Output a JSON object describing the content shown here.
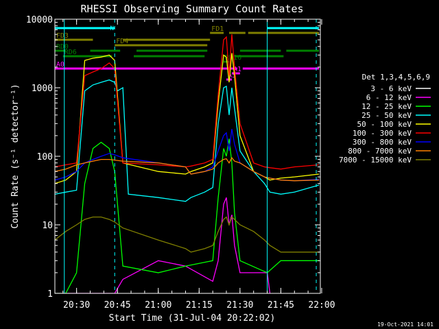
{
  "chart_data": {
    "type": "line",
    "title": "RHESSI Observing Summary Count Rates",
    "xlabel": "Start Time (31-Jul-04 20:22:02)",
    "ylabel": "Count Rate (s⁻¹ detector⁻¹)",
    "yscale": "log",
    "ylim": [
      1,
      10000
    ],
    "xlim": [
      "20:22:02",
      "21:59:30"
    ],
    "x_ticks": [
      "20:30",
      "20:45",
      "21:00",
      "21:15",
      "21:30",
      "21:45",
      "22:00"
    ],
    "y_ticks": [
      "1",
      "10",
      "100",
      "1000",
      "10000"
    ],
    "footer": "19-Oct-2021 14:01",
    "legend_title": "Det 1,3,4,5,6,9",
    "legend_position": "right",
    "colors": {
      "background": "#000000",
      "axis": "#ffffff",
      "night_lines": "#00ffff",
      "attenuator": "#ff00ff",
      "flags": "#808000",
      "decimation": "#008000"
    },
    "series": [
      {
        "name": "3 - 6 keV",
        "color": "#000000",
        "x": [
          "20:22",
          "20:26",
          "20:30",
          "20:33",
          "20:36",
          "20:39",
          "20:42",
          "20:44",
          "20:47",
          "21:10",
          "21:20",
          "21:22",
          "21:24",
          "21:25",
          "21:26",
          "21:27",
          "21:28",
          "21:30",
          "21:38",
          "21:41"
        ],
        "y": [
          1,
          1,
          1,
          20,
          32,
          35,
          28,
          15,
          1,
          1,
          1,
          3,
          22,
          35,
          15,
          30,
          8,
          2,
          1,
          1
        ]
      },
      {
        "name": "6 - 12 keV",
        "color": "#ff00ff",
        "x": [
          "20:22",
          "20:26",
          "20:30",
          "20:33",
          "20:36",
          "20:39",
          "20:42",
          "20:44",
          "20:47",
          "21:00",
          "21:10",
          "21:20",
          "21:22",
          "21:24",
          "21:25",
          "21:26",
          "21:27",
          "21:28",
          "21:30",
          "21:40",
          "21:41"
        ],
        "y": [
          1,
          1,
          1,
          1,
          1,
          1,
          1,
          1,
          1.6,
          3,
          2.5,
          1.5,
          3,
          20,
          25,
          10,
          14,
          5,
          2,
          2,
          1
        ]
      },
      {
        "name": "12 - 25 keV",
        "color": "#00ff00",
        "x": [
          "20:22",
          "20:26",
          "20:30",
          "20:33",
          "20:36",
          "20:39",
          "20:42",
          "20:44",
          "20:47",
          "21:00",
          "21:10",
          "21:20",
          "21:22",
          "21:24",
          "21:25",
          "21:26",
          "21:27",
          "21:28",
          "21:30",
          "21:40",
          "21:45",
          "21:59"
        ],
        "y": [
          1,
          1,
          2,
          40,
          130,
          160,
          130,
          60,
          2.5,
          2,
          2.5,
          3,
          25,
          130,
          100,
          180,
          80,
          15,
          3,
          2,
          3,
          3
        ]
      },
      {
        "name": "25 - 50 keV",
        "color": "#00ffff",
        "x": [
          "20:22",
          "20:26",
          "20:30",
          "20:33",
          "20:36",
          "20:39",
          "20:42",
          "20:44",
          "20:45",
          "20:47",
          "20:49",
          "21:00",
          "21:10",
          "21:12",
          "21:17",
          "21:20",
          "21:22",
          "21:24",
          "21:25",
          "21:26",
          "21:27",
          "21:28",
          "21:30",
          "21:35",
          "21:39",
          "21:41",
          "21:45",
          "21:50",
          "21:59"
        ],
        "y": [
          28,
          30,
          32,
          900,
          1100,
          1200,
          1300,
          1200,
          900,
          1000,
          28,
          25,
          22,
          25,
          30,
          35,
          300,
          1000,
          1050,
          400,
          1000,
          500,
          120,
          60,
          40,
          30,
          28,
          30,
          38
        ]
      },
      {
        "name": "50 - 100 keV",
        "color": "#ffff00",
        "x": [
          "20:22",
          "20:26",
          "20:30",
          "20:33",
          "20:36",
          "20:39",
          "20:42",
          "20:44",
          "20:47",
          "21:00",
          "21:10",
          "21:12",
          "21:17",
          "21:20",
          "21:22",
          "21:24",
          "21:25",
          "21:26",
          "21:27",
          "21:28",
          "21:30",
          "21:35",
          "21:39",
          "21:41",
          "21:45",
          "21:50",
          "21:59"
        ],
        "y": [
          40,
          45,
          60,
          2500,
          2700,
          2800,
          3000,
          2500,
          80,
          60,
          55,
          60,
          70,
          80,
          600,
          3000,
          2800,
          1200,
          3200,
          1500,
          200,
          60,
          50,
          45,
          48,
          50,
          55
        ]
      },
      {
        "name": "100 - 300 keV",
        "color": "#ff0000",
        "x": [
          "20:22",
          "20:26",
          "20:30",
          "20:33",
          "20:36",
          "20:39",
          "20:42",
          "20:44",
          "20:47",
          "21:00",
          "21:10",
          "21:12",
          "21:17",
          "21:20",
          "21:22",
          "21:24",
          "21:25",
          "21:26",
          "21:27",
          "21:28",
          "21:30",
          "21:35",
          "21:39",
          "21:41",
          "21:45",
          "21:50",
          "21:59"
        ],
        "y": [
          70,
          75,
          80,
          1500,
          1700,
          1900,
          2300,
          1900,
          80,
          75,
          70,
          72,
          80,
          90,
          800,
          5000,
          5500,
          1500,
          6000,
          2000,
          300,
          80,
          70,
          68,
          65,
          70,
          75
        ]
      },
      {
        "name": "300 - 800 keV",
        "color": "#0000ff",
        "x": [
          "20:22",
          "20:26",
          "20:30",
          "20:33",
          "20:36",
          "20:39",
          "20:42",
          "20:44",
          "20:47",
          "21:00",
          "21:10",
          "21:12",
          "21:17",
          "21:20",
          "21:22",
          "21:24",
          "21:25",
          "21:26",
          "21:27",
          "21:28",
          "21:30",
          "21:35",
          "21:39",
          "21:41",
          "21:45",
          "21:50",
          "21:59"
        ],
        "y": [
          45,
          50,
          60,
          80,
          90,
          100,
          110,
          105,
          95,
          80,
          70,
          55,
          60,
          70,
          120,
          200,
          220,
          120,
          250,
          150,
          80,
          60,
          50,
          48,
          45,
          44,
          46
        ]
      },
      {
        "name": "800 - 7000 keV",
        "color": "#ff8000",
        "x": [
          "20:22",
          "20:26",
          "20:30",
          "20:33",
          "20:36",
          "20:39",
          "20:42",
          "20:44",
          "20:47",
          "21:00",
          "21:10",
          "21:12",
          "21:17",
          "21:20",
          "21:22",
          "21:24",
          "21:25",
          "21:26",
          "21:27",
          "21:28",
          "21:30",
          "21:35",
          "21:39",
          "21:41",
          "21:45",
          "21:50",
          "21:59"
        ],
        "y": [
          60,
          65,
          75,
          80,
          85,
          90,
          90,
          88,
          85,
          80,
          70,
          55,
          60,
          65,
          80,
          90,
          92,
          80,
          95,
          85,
          80,
          60,
          50,
          48,
          45,
          44,
          45
        ]
      },
      {
        "name": "7000 - 15000 keV",
        "color": "#808000",
        "x": [
          "20:22",
          "20:26",
          "20:30",
          "20:33",
          "20:36",
          "20:39",
          "20:42",
          "20:44",
          "20:47",
          "21:00",
          "21:10",
          "21:12",
          "21:17",
          "21:20",
          "21:22",
          "21:24",
          "21:25",
          "21:26",
          "21:27",
          "21:28",
          "21:30",
          "21:35",
          "21:39",
          "21:41",
          "21:45",
          "21:50",
          "21:59"
        ],
        "y": [
          6,
          8,
          10,
          12,
          13,
          13,
          12,
          11,
          9,
          6,
          4.5,
          4,
          4.5,
          5,
          8,
          12,
          13,
          10,
          13,
          12,
          10,
          8,
          6,
          5,
          4,
          4,
          4
        ]
      }
    ],
    "annotations": {
      "night": {
        "label": "N",
        "color": "#00ffff",
        "bars": [
          [
            "20:22",
            "20:44"
          ],
          [
            "21:40",
            "21:59"
          ]
        ],
        "dashed_x": [
          "20:44",
          "21:58"
        ],
        "solid_x": [
          "20:25:30",
          "21:40"
        ]
      },
      "flags": [
        {
          "label": "FD1",
          "color": "#808000",
          "segments": [
            [
              "21:19",
              "21:24"
            ],
            [
              "21:26",
              "21:32"
            ],
            [
              "21:33",
              "21:59"
            ]
          ]
        },
        {
          "label": "FD3",
          "color": "#808000",
          "segments": [
            [
              "20:22",
              "20:36"
            ],
            [
              "20:47",
              "21:19"
            ]
          ]
        },
        {
          "label": "FD4",
          "color": "#808000",
          "segments": [
            [
              "20:44",
              "21:18"
            ]
          ]
        },
        {
          "label": "RD0",
          "color": "#008000",
          "segments": [
            [
              "20:22",
              "20:26"
            ],
            [
              "20:35",
              "20:46"
            ],
            [
              "20:52",
              "21:18"
            ],
            [
              "21:30",
              "21:45"
            ],
            [
              "21:47",
              "21:59"
            ]
          ]
        },
        {
          "label": "RD6",
          "color": "#008000",
          "segments": [
            [
              "20:25",
              "20:43"
            ],
            [
              "20:51",
              "21:17"
            ],
            [
              "21:28",
              "21:46"
            ]
          ]
        },
        {
          "label": "RD16",
          "color": "#008000",
          "segments": [
            [
              "21:24",
              "21:26"
            ]
          ]
        },
        {
          "label": "A0",
          "color": "#ff00ff",
          "segments": [
            [
              "20:22",
              "21:29"
            ],
            [
              "21:31",
              "21:59"
            ]
          ]
        },
        {
          "label": "A1",
          "color": "#ff00ff",
          "segments": [
            [
              "21:27",
              "21:30"
            ]
          ]
        },
        {
          "label": "A3",
          "color": "#ff00ff",
          "segments": [
            [
              "21:25",
              "21:27"
            ]
          ]
        }
      ]
    }
  }
}
